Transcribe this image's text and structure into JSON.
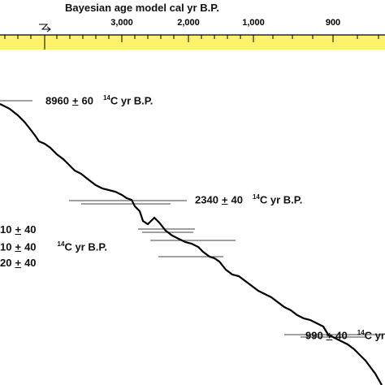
{
  "axis": {
    "title": "Bayesian age model cal yr B.P.",
    "tick_labels": [
      "3,000",
      "2,000",
      "1,000",
      "900"
    ]
  },
  "annotations": [
    {
      "value": "8960",
      "sign": "+",
      "error": "60",
      "isotope": "14",
      "unit": "C yr B.P."
    },
    {
      "value": "2340",
      "sign": "+",
      "error": "40",
      "isotope": "14",
      "unit": "C yr B.P."
    },
    {
      "value": "10",
      "sign": "+",
      "error": "40"
    },
    {
      "value": "10",
      "sign": "+",
      "error": "40",
      "isotope": "14",
      "unit": "C yr B.P."
    },
    {
      "value": "20",
      "sign": "+",
      "error": "40"
    },
    {
      "value": "990",
      "sign": "+",
      "error": "40",
      "isotope": "14",
      "unit": "C yr B.P."
    }
  ]
}
